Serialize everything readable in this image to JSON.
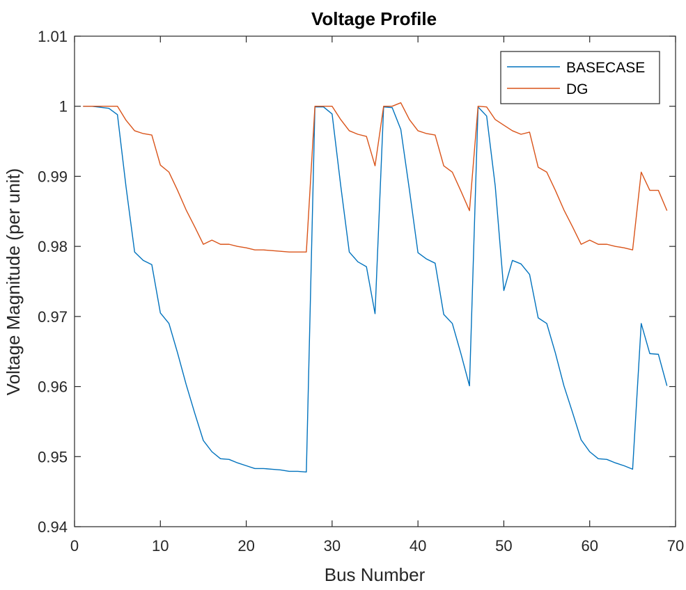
{
  "chart_data": {
    "type": "line",
    "title": "Voltage Profile",
    "xlabel": "Bus Number",
    "ylabel": "Voltage Magnitude (per unit)",
    "xlim": [
      0,
      70
    ],
    "ylim": [
      0.94,
      1.01
    ],
    "xticks": [
      0,
      10,
      20,
      30,
      40,
      50,
      60,
      70
    ],
    "xtick_labels": [
      "0",
      "10",
      "20",
      "30",
      "40",
      "50",
      "60",
      "70"
    ],
    "yticks": [
      0.94,
      0.95,
      0.96,
      0.97,
      0.98,
      0.99,
      1.0,
      1.01
    ],
    "ytick_labels": [
      "0.94",
      "0.95",
      "0.96",
      "0.97",
      "0.98",
      "0.99",
      "1",
      "1.01"
    ],
    "grid": false,
    "legend_position": "top-right",
    "x": [
      1,
      2,
      3,
      4,
      5,
      6,
      7,
      8,
      9,
      10,
      11,
      12,
      13,
      14,
      15,
      16,
      17,
      18,
      19,
      20,
      21,
      22,
      23,
      24,
      25,
      26,
      27,
      28,
      29,
      30,
      31,
      32,
      33,
      34,
      35,
      36,
      37,
      38,
      39,
      40,
      41,
      42,
      43,
      44,
      45,
      46,
      47,
      48,
      49,
      50,
      51,
      52,
      53,
      54,
      55,
      56,
      57,
      58,
      59,
      60,
      61,
      62,
      63,
      64,
      65,
      66,
      67,
      68,
      69
    ],
    "series": [
      {
        "name": "BASECASE",
        "color": "#0072BD",
        "values": [
          1.0,
          1.0,
          0.99985,
          0.9997,
          0.9988,
          0.9885,
          0.9792,
          0.978,
          0.9774,
          0.9705,
          0.969,
          0.9648,
          0.9603,
          0.9562,
          0.9523,
          0.9507,
          0.9497,
          0.9496,
          0.9491,
          0.9487,
          0.9483,
          0.9483,
          0.9482,
          0.9481,
          0.9479,
          0.9479,
          0.9478,
          0.9999,
          0.9999,
          0.9989,
          0.9887,
          0.9792,
          0.9778,
          0.9771,
          0.9704,
          0.9999,
          0.9998,
          0.9967,
          0.9881,
          0.9791,
          0.9782,
          0.9776,
          0.9703,
          0.969,
          0.9647,
          0.9601,
          0.9999,
          0.9986,
          0.9886,
          0.9737,
          0.978,
          0.9775,
          0.976,
          0.9698,
          0.969,
          0.9648,
          0.9601,
          0.9563,
          0.9524,
          0.9507,
          0.9497,
          0.9496,
          0.9491,
          0.9487,
          0.9482,
          0.969,
          0.9647,
          0.9646,
          0.9601
        ]
      },
      {
        "name": "DG",
        "color": "#D95319",
        "values": [
          1.0,
          1.0,
          1.0,
          1.0,
          1.0,
          0.998,
          0.9965,
          0.9961,
          0.9959,
          0.9916,
          0.9906,
          0.988,
          0.9852,
          0.9828,
          0.9803,
          0.9809,
          0.9803,
          0.9803,
          0.98,
          0.9798,
          0.9795,
          0.9795,
          0.9794,
          0.9793,
          0.9792,
          0.9792,
          0.9792,
          1.0,
          1.0,
          1.0,
          0.9981,
          0.9965,
          0.996,
          0.9957,
          0.9915,
          1.0,
          1.0,
          1.0005,
          0.9981,
          0.9965,
          0.9961,
          0.9959,
          0.9915,
          0.9906,
          0.9879,
          0.9851,
          1.0,
          0.9999,
          0.9981,
          0.9973,
          0.9965,
          0.996,
          0.9963,
          0.9913,
          0.9906,
          0.988,
          0.9852,
          0.9828,
          0.9803,
          0.9809,
          0.9803,
          0.9803,
          0.98,
          0.9798,
          0.9795,
          0.9906,
          0.988,
          0.988,
          0.9851
        ]
      }
    ]
  }
}
